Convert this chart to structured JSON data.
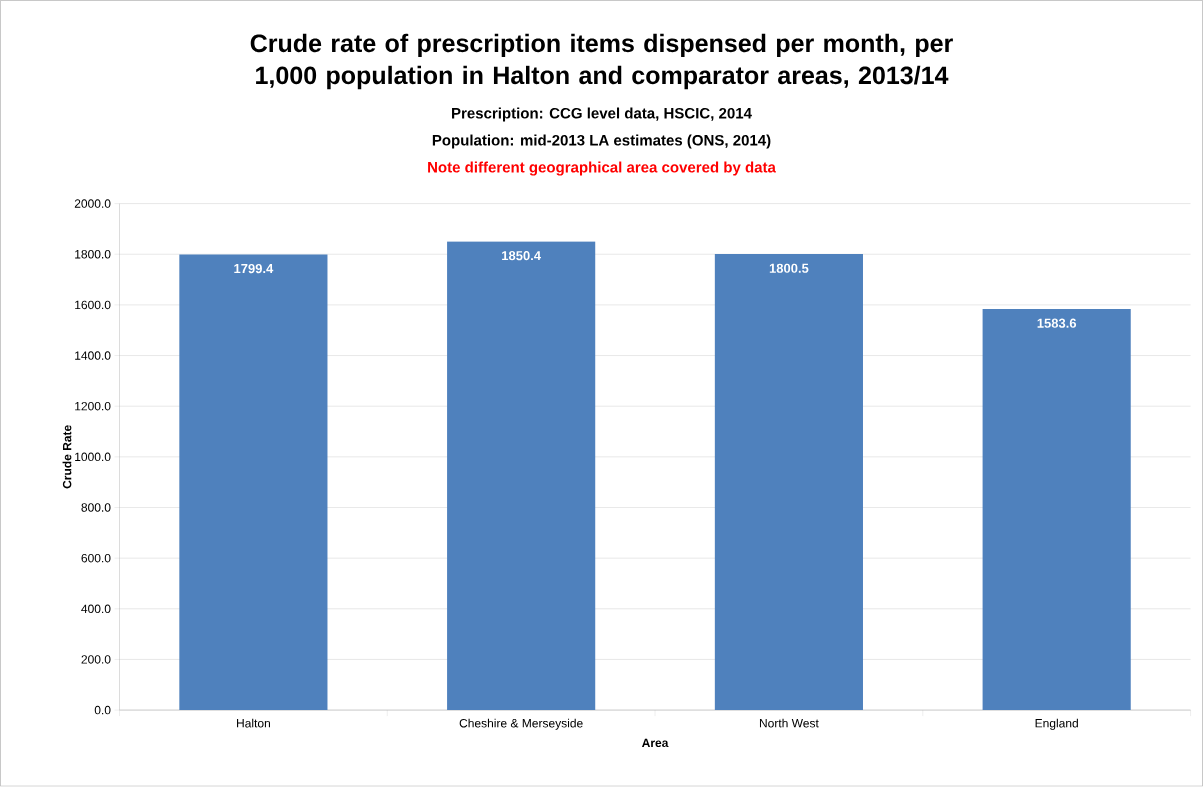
{
  "chart_data": {
    "type": "bar",
    "title": "Crude rate of prescription items dispensed per month, per 1,000 population in Halton and comparator areas, 2013/14",
    "subtitle": "Prescription: CCG level data, HSCIC, 2014",
    "annotations": [
      "Population: mid-2013 LA estimates (ONS, 2014)",
      "Note different geographical area covered by data"
    ],
    "xlabel": "Area",
    "ylabel": "Crude Rate",
    "categories": [
      "Halton",
      "Cheshire & Merseyside",
      "North West",
      "England"
    ],
    "values": [
      1799.4,
      1850.4,
      1800.5,
      1583.6
    ],
    "color": "#4f81bd",
    "data_labels": true,
    "grid": "y",
    "ylim": [
      0,
      2000
    ],
    "yticks": [
      {
        "value": 0,
        "label": "0.0"
      },
      {
        "value": 200,
        "label": "200.0"
      },
      {
        "value": 400,
        "label": "400.0"
      },
      {
        "value": 600,
        "label": "600.0"
      },
      {
        "value": 800,
        "label": "800.0"
      },
      {
        "value": 1000,
        "label": "1000.0"
      },
      {
        "value": 1200,
        "label": "1200.0"
      },
      {
        "value": 1400,
        "label": "1400.0"
      },
      {
        "value": 1600,
        "label": "1600.0"
      },
      {
        "value": 1800,
        "label": "1800.0"
      },
      {
        "value": 2000,
        "label": "2000.0"
      }
    ]
  }
}
